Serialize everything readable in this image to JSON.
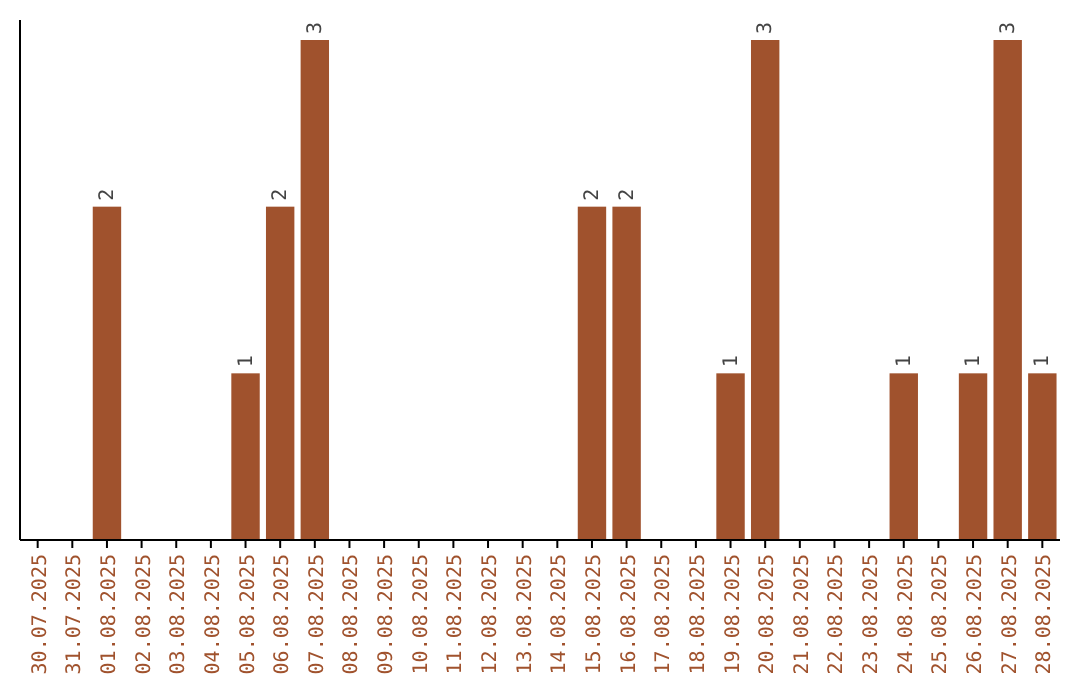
{
  "chart_data": {
    "type": "bar",
    "categories": [
      "30.07.2025",
      "31.07.2025",
      "01.08.2025",
      "02.08.2025",
      "03.08.2025",
      "04.08.2025",
      "05.08.2025",
      "06.08.2025",
      "07.08.2025",
      "08.08.2025",
      "09.08.2025",
      "10.08.2025",
      "11.08.2025",
      "12.08.2025",
      "13.08.2025",
      "14.08.2025",
      "15.08.2025",
      "16.08.2025",
      "17.08.2025",
      "18.08.2025",
      "19.08.2025",
      "20.08.2025",
      "21.08.2025",
      "22.08.2025",
      "23.08.2025",
      "24.08.2025",
      "25.08.2025",
      "26.08.2025",
      "27.08.2025",
      "28.08.2025"
    ],
    "values": [
      0,
      0,
      2,
      0,
      0,
      0,
      1,
      2,
      3,
      0,
      0,
      0,
      0,
      0,
      0,
      0,
      2,
      2,
      0,
      0,
      1,
      3,
      0,
      0,
      0,
      1,
      0,
      1,
      3,
      1
    ],
    "value_labels": [
      null,
      null,
      "2",
      null,
      null,
      null,
      "1",
      "2",
      "3",
      null,
      null,
      null,
      null,
      null,
      null,
      null,
      "2",
      "2",
      null,
      null,
      "1",
      "3",
      null,
      null,
      null,
      "1",
      null,
      "1",
      "3",
      "1"
    ],
    "color": "#a0522d",
    "tick_labels": "x"
  }
}
